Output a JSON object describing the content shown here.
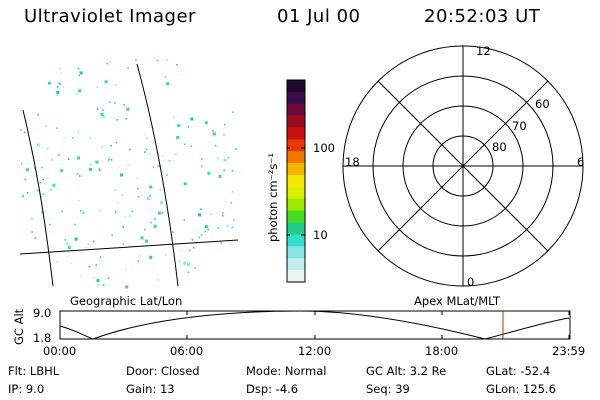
{
  "header": {
    "title": "Ultraviolet Imager",
    "date": "01 Jul 00",
    "time": "20:52:03 UT"
  },
  "colorbar": {
    "label": "photon cm⁻²s⁻¹",
    "ticks": [
      "100",
      "10"
    ],
    "colors": [
      "#1a0a2e",
      "#3c0b4a",
      "#6b0a3a",
      "#9a0a20",
      "#c81010",
      "#e83a00",
      "#f07a00",
      "#f5b800",
      "#f7e700",
      "#d7f000",
      "#9ee800",
      "#44dd22",
      "#22cc88",
      "#33ddcc",
      "#88e6e6",
      "#c4eeee",
      "#e6f4f4"
    ]
  },
  "polar": {
    "mlt_labels": {
      "top": "12",
      "left": "18",
      "right": "6",
      "bottom": "0"
    },
    "lat_labels": [
      "60",
      "70",
      "80"
    ]
  },
  "panels": {
    "left_label": "Geographic Lat/Lon",
    "right_label": "Apex MLat/MLT"
  },
  "orbit_plot": {
    "ylabel": "GC Alt",
    "yticks": [
      "9.0",
      "1.8"
    ],
    "xticks": [
      "00:00",
      "06:00",
      "12:00",
      "18:00",
      "23:59"
    ],
    "marker_color": "#cc2222"
  },
  "footer": {
    "row1": {
      "filter": "Flt: LBHL",
      "door": "Door: Closed",
      "mode": "Mode: Normal",
      "gcalt": "GC Alt: 3.2 Re",
      "glat": "GLat: -52.4"
    },
    "row2": {
      "ip": "IP:  9.0",
      "gain": "Gain: 13",
      "dsp": "Dsp:   -4.6",
      "seq": "Seq: 39",
      "glon": "GLon: 125.6"
    }
  }
}
